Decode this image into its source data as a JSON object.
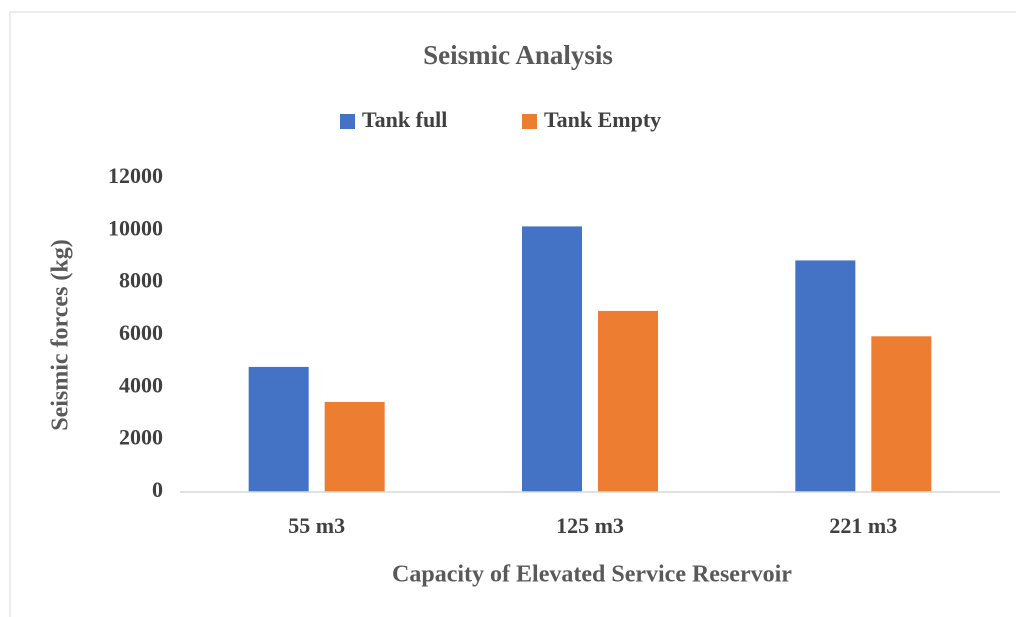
{
  "chart_data": {
    "type": "bar",
    "title": "Seismic Analysis",
    "x_label": "Capacity of Elevated Service Reservoir",
    "y_label": "Seismic forces (kg)",
    "categories": [
      "55 m3",
      "125 m3",
      "221 m3"
    ],
    "series": [
      {
        "name": "Tank full",
        "color": "#4472c4",
        "values": [
          4780,
          10150,
          8850
        ]
      },
      {
        "name": "Tank Empty",
        "color": "#ed7d31",
        "values": [
          3440,
          6920,
          5950
        ]
      }
    ],
    "ylim": [
      0,
      12000
    ],
    "yticks": [
      0,
      2000,
      4000,
      6000,
      8000,
      10000,
      12000
    ],
    "grid": false,
    "legend": "top"
  }
}
